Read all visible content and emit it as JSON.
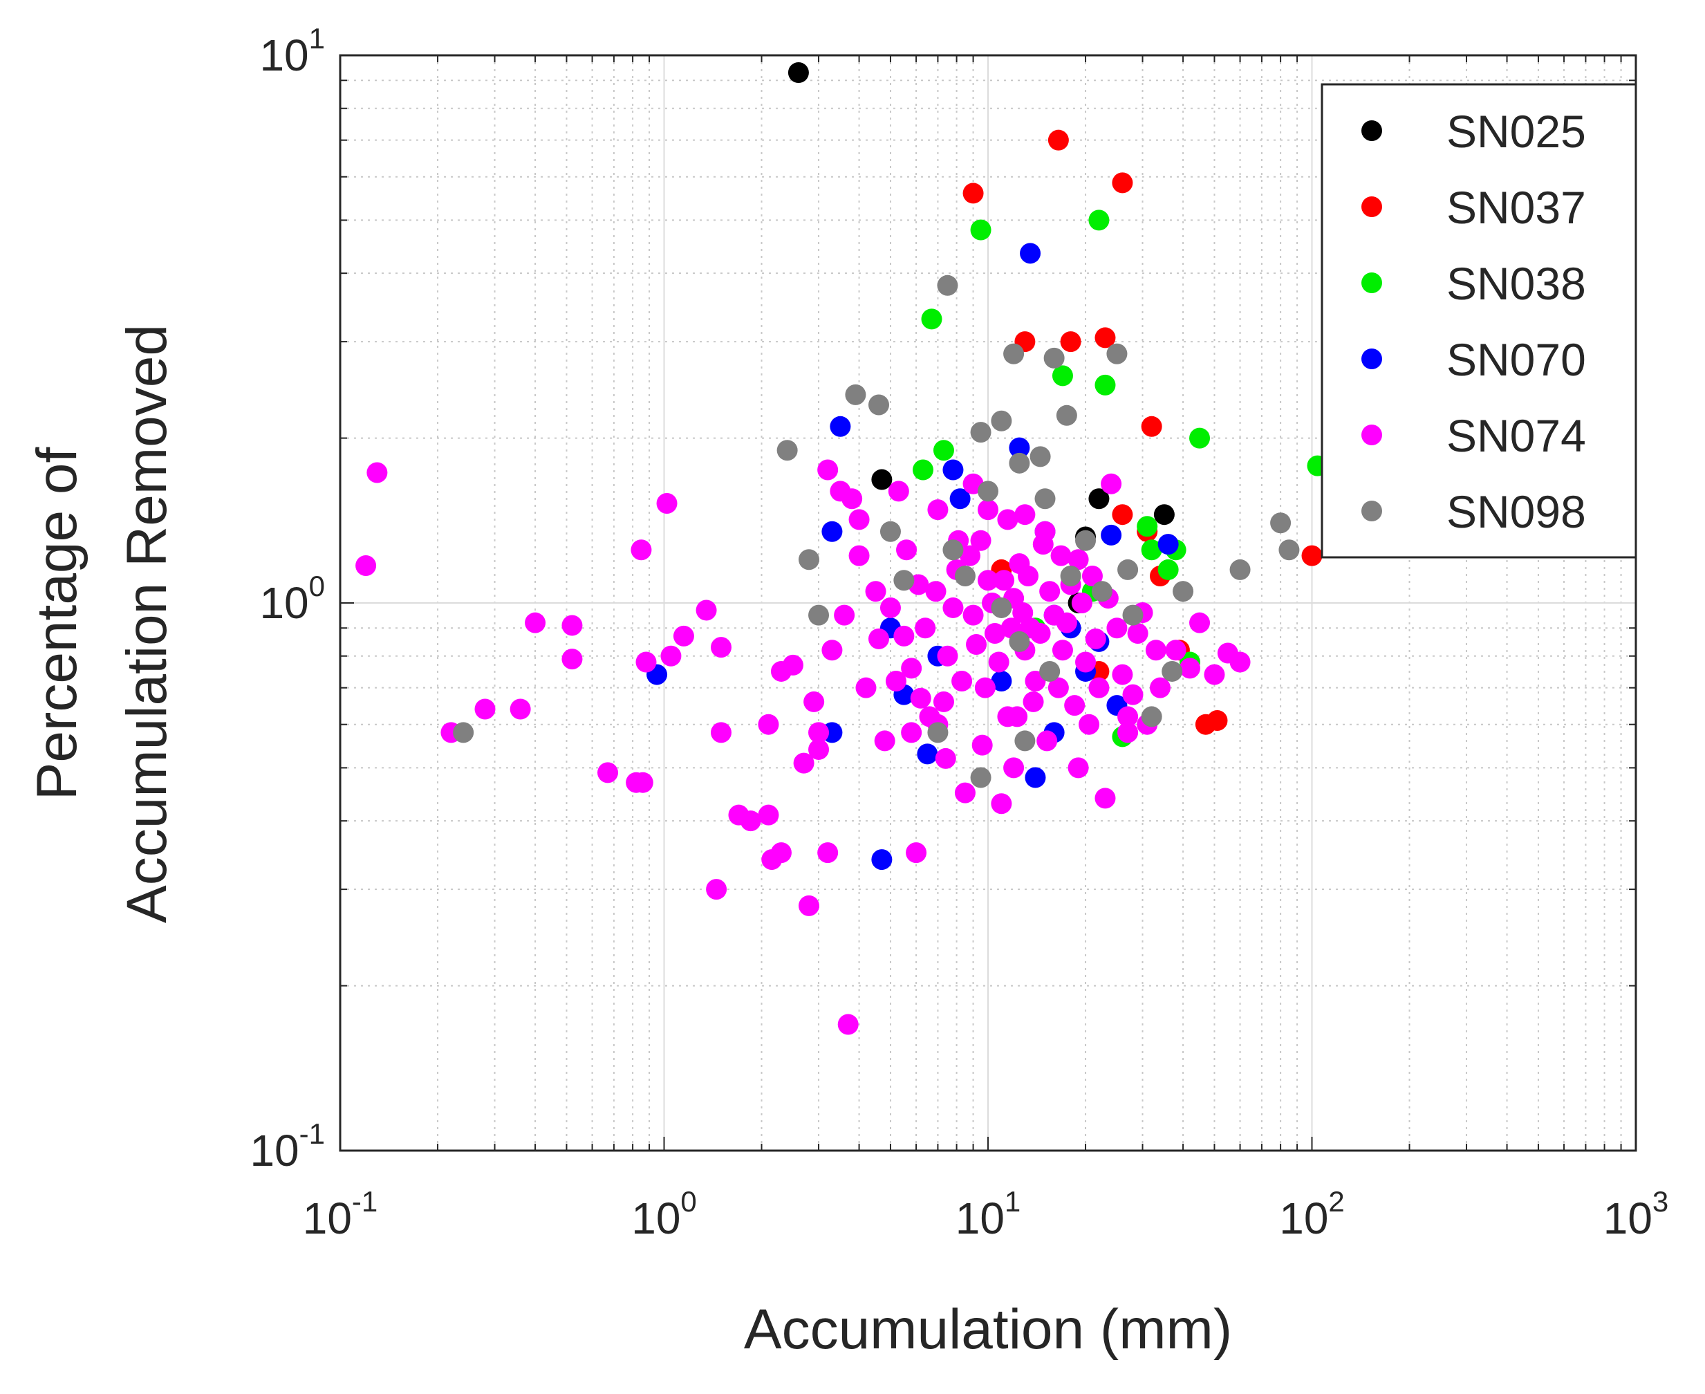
{
  "chart_data": {
    "type": "scatter",
    "xscale": "log",
    "yscale": "log",
    "xlabel": "Accumulation (mm)",
    "ylabel": [
      "Percentage of",
      "Accumulation Removed"
    ],
    "xlim": [
      0.1,
      1000
    ],
    "ylim": [
      0.1,
      10
    ],
    "grid": true,
    "legend_position": "top-right",
    "xticks": [
      {
        "base": "10",
        "exp": "-1"
      },
      {
        "base": "10",
        "exp": "0"
      },
      {
        "base": "10",
        "exp": "1"
      },
      {
        "base": "10",
        "exp": "2"
      },
      {
        "base": "10",
        "exp": "3"
      }
    ],
    "yticks": [
      {
        "base": "10",
        "exp": "-1"
      },
      {
        "base": "10",
        "exp": "0"
      },
      {
        "base": "10",
        "exp": "1"
      }
    ],
    "series": [
      {
        "name": "SN025",
        "color": "#000000",
        "points": [
          [
            2.6,
            9.3
          ],
          [
            4.7,
            1.68
          ],
          [
            20,
            1.32
          ],
          [
            35,
            1.45
          ],
          [
            22,
            1.55
          ],
          [
            19,
            1.0
          ]
        ]
      },
      {
        "name": "SN037",
        "color": "#ff0000",
        "points": [
          [
            16.5,
            7.0
          ],
          [
            26,
            5.85
          ],
          [
            9.0,
            5.6
          ],
          [
            13,
            3.0
          ],
          [
            18,
            3.0
          ],
          [
            23,
            3.05
          ],
          [
            32,
            2.1
          ],
          [
            100,
            1.22
          ],
          [
            11,
            1.15
          ],
          [
            26,
            1.45
          ],
          [
            31,
            1.35
          ],
          [
            34,
            1.12
          ],
          [
            39,
            0.82
          ],
          [
            47,
            0.6
          ],
          [
            51,
            0.61
          ],
          [
            22,
            0.75
          ]
        ]
      },
      {
        "name": "SN038",
        "color": "#00ee00",
        "points": [
          [
            9.5,
            4.8
          ],
          [
            22,
            5.0
          ],
          [
            6.7,
            3.3
          ],
          [
            17,
            2.6
          ],
          [
            23,
            2.5
          ],
          [
            45,
            2.0
          ],
          [
            7.3,
            1.9
          ],
          [
            6.3,
            1.75
          ],
          [
            104,
            1.78
          ],
          [
            31,
            1.38
          ],
          [
            32,
            1.25
          ],
          [
            38,
            1.25
          ],
          [
            36,
            1.15
          ],
          [
            42,
            0.78
          ],
          [
            26,
            0.57
          ],
          [
            14,
            0.9
          ],
          [
            21,
            1.05
          ]
        ]
      },
      {
        "name": "SN070",
        "color": "#0000ff",
        "points": [
          [
            13.5,
            4.35
          ],
          [
            3.5,
            2.1
          ],
          [
            12.5,
            1.92
          ],
          [
            3.3,
            1.35
          ],
          [
            8.2,
            1.55
          ],
          [
            7.8,
            1.75
          ],
          [
            24,
            1.33
          ],
          [
            36,
            1.28
          ],
          [
            15,
            1.35
          ],
          [
            16,
            0.95
          ],
          [
            22,
            0.85
          ],
          [
            0.95,
            0.74
          ],
          [
            5.5,
            0.68
          ],
          [
            3.3,
            0.58
          ],
          [
            6.5,
            0.53
          ],
          [
            14,
            0.48
          ],
          [
            4.7,
            0.34
          ],
          [
            16,
            0.58
          ],
          [
            20,
            0.75
          ],
          [
            11,
            0.72
          ],
          [
            5.0,
            0.9
          ],
          [
            7.0,
            0.8
          ],
          [
            18,
            0.9
          ],
          [
            25,
            0.65
          ]
        ]
      },
      {
        "name": "SN074",
        "color": "#ff00ff",
        "points": [
          [
            0.13,
            1.73
          ],
          [
            0.12,
            1.17
          ],
          [
            1.02,
            1.52
          ],
          [
            0.85,
            1.25
          ],
          [
            0.22,
            0.58
          ],
          [
            0.28,
            0.64
          ],
          [
            0.36,
            0.64
          ],
          [
            0.4,
            0.92
          ],
          [
            0.52,
            0.91
          ],
          [
            0.52,
            0.79
          ],
          [
            0.67,
            0.49
          ],
          [
            0.82,
            0.47
          ],
          [
            0.86,
            0.47
          ],
          [
            0.88,
            0.78
          ],
          [
            1.05,
            0.8
          ],
          [
            1.15,
            0.87
          ],
          [
            1.35,
            0.97
          ],
          [
            1.5,
            0.83
          ],
          [
            1.5,
            0.58
          ],
          [
            1.45,
            0.3
          ],
          [
            1.7,
            0.41
          ],
          [
            1.85,
            0.4
          ],
          [
            2.1,
            0.41
          ],
          [
            2.15,
            0.34
          ],
          [
            2.3,
            0.35
          ],
          [
            2.1,
            0.6
          ],
          [
            2.3,
            0.75
          ],
          [
            2.5,
            0.77
          ],
          [
            2.8,
            0.28
          ],
          [
            3.2,
            0.35
          ],
          [
            3.7,
            0.17
          ],
          [
            2.7,
            0.51
          ],
          [
            3.0,
            0.58
          ],
          [
            2.9,
            0.66
          ],
          [
            3.0,
            0.54
          ],
          [
            3.2,
            1.75
          ],
          [
            3.5,
            1.6
          ],
          [
            3.8,
            1.55
          ],
          [
            4.0,
            1.22
          ],
          [
            4.5,
            1.05
          ],
          [
            5.0,
            0.98
          ],
          [
            5.5,
            0.87
          ],
          [
            5.8,
            0.76
          ],
          [
            6.0,
            0.35
          ],
          [
            6.2,
            0.67
          ],
          [
            6.6,
            0.62
          ],
          [
            7.0,
            0.6
          ],
          [
            7.5,
            0.8
          ],
          [
            8.0,
            1.15
          ],
          [
            8.5,
            0.45
          ],
          [
            9.0,
            0.95
          ],
          [
            9.5,
            1.3
          ],
          [
            10,
            1.1
          ],
          [
            10.5,
            0.88
          ],
          [
            11,
            0.43
          ],
          [
            11.5,
            0.62
          ],
          [
            12,
            1.02
          ],
          [
            12.5,
            1.18
          ],
          [
            13,
            0.82
          ],
          [
            13.5,
            0.9
          ],
          [
            14,
            0.72
          ],
          [
            15,
            1.35
          ],
          [
            16,
            0.95
          ],
          [
            17,
            0.82
          ],
          [
            18,
            1.08
          ],
          [
            19,
            0.5
          ],
          [
            20,
            0.78
          ],
          [
            21,
            1.12
          ],
          [
            22,
            0.7
          ],
          [
            23,
            0.44
          ],
          [
            24,
            1.65
          ],
          [
            25,
            0.9
          ],
          [
            27,
            0.62
          ],
          [
            29,
            0.88
          ],
          [
            31,
            0.6
          ],
          [
            34,
            0.7
          ],
          [
            38,
            0.82
          ],
          [
            42,
            0.76
          ],
          [
            45,
            0.92
          ],
          [
            50,
            0.74
          ],
          [
            55,
            0.81
          ],
          [
            60,
            0.78
          ],
          [
            3.3,
            0.82
          ],
          [
            3.6,
            0.95
          ],
          [
            4.2,
            0.7
          ],
          [
            4.6,
            0.86
          ],
          [
            5.2,
            0.72
          ],
          [
            5.6,
            1.25
          ],
          [
            6.4,
            0.9
          ],
          [
            6.9,
            1.05
          ],
          [
            7.3,
            0.66
          ],
          [
            7.8,
            0.98
          ],
          [
            8.3,
            0.72
          ],
          [
            8.8,
            1.22
          ],
          [
            9.2,
            0.84
          ],
          [
            9.8,
            0.7
          ],
          [
            10.3,
            1.0
          ],
          [
            10.8,
            0.78
          ],
          [
            11.2,
            1.1
          ],
          [
            11.8,
            0.9
          ],
          [
            12.3,
            0.62
          ],
          [
            12.8,
            0.96
          ],
          [
            13.3,
            1.12
          ],
          [
            13.8,
            0.66
          ],
          [
            14.5,
            0.88
          ],
          [
            15.5,
            1.05
          ],
          [
            16.5,
            0.7
          ],
          [
            17.5,
            0.92
          ],
          [
            18.5,
            0.65
          ],
          [
            19.5,
            1.0
          ],
          [
            21.5,
            0.86
          ],
          [
            23.5,
            1.02
          ],
          [
            26,
            0.74
          ],
          [
            28,
            0.68
          ],
          [
            30,
            0.96
          ],
          [
            33,
            0.82
          ],
          [
            4.0,
            1.42
          ],
          [
            5.3,
            1.6
          ],
          [
            6.1,
            1.08
          ],
          [
            7.0,
            1.48
          ],
          [
            8.1,
            1.3
          ],
          [
            9.0,
            1.65
          ],
          [
            10.0,
            1.48
          ],
          [
            11.5,
            1.42
          ],
          [
            13.0,
            1.45
          ],
          [
            14.8,
            1.28
          ],
          [
            16.8,
            1.22
          ],
          [
            19.0,
            1.2
          ],
          [
            4.8,
            0.56
          ],
          [
            5.8,
            0.58
          ],
          [
            7.4,
            0.52
          ],
          [
            9.6,
            0.55
          ],
          [
            12.0,
            0.5
          ],
          [
            15.2,
            0.56
          ],
          [
            20.5,
            0.6
          ],
          [
            27,
            0.58
          ]
        ]
      },
      {
        "name": "SN098",
        "color": "#808080",
        "points": [
          [
            7.5,
            3.8
          ],
          [
            2.4,
            1.9
          ],
          [
            3.9,
            2.4
          ],
          [
            4.6,
            2.3
          ],
          [
            12,
            2.85
          ],
          [
            16,
            2.8
          ],
          [
            25,
            2.85
          ],
          [
            17.5,
            2.2
          ],
          [
            9.5,
            2.05
          ],
          [
            11,
            2.15
          ],
          [
            14.5,
            1.85
          ],
          [
            12.5,
            1.8
          ],
          [
            10,
            1.6
          ],
          [
            80,
            1.4
          ],
          [
            85,
            1.25
          ],
          [
            60,
            1.15
          ],
          [
            2.8,
            1.2
          ],
          [
            5,
            1.35
          ],
          [
            7.8,
            1.25
          ],
          [
            15,
            1.55
          ],
          [
            20,
            1.3
          ],
          [
            28,
            0.95
          ],
          [
            0.24,
            0.58
          ],
          [
            7,
            0.58
          ],
          [
            9.5,
            0.48
          ],
          [
            13,
            0.56
          ],
          [
            15.5,
            0.75
          ],
          [
            32,
            0.62
          ],
          [
            37,
            0.75
          ],
          [
            3,
            0.95
          ],
          [
            5.5,
            1.1
          ],
          [
            8.5,
            1.12
          ],
          [
            11,
            0.98
          ],
          [
            12.5,
            0.85
          ],
          [
            18,
            1.12
          ],
          [
            22.5,
            1.05
          ],
          [
            27,
            1.15
          ],
          [
            40,
            1.05
          ]
        ]
      }
    ]
  }
}
